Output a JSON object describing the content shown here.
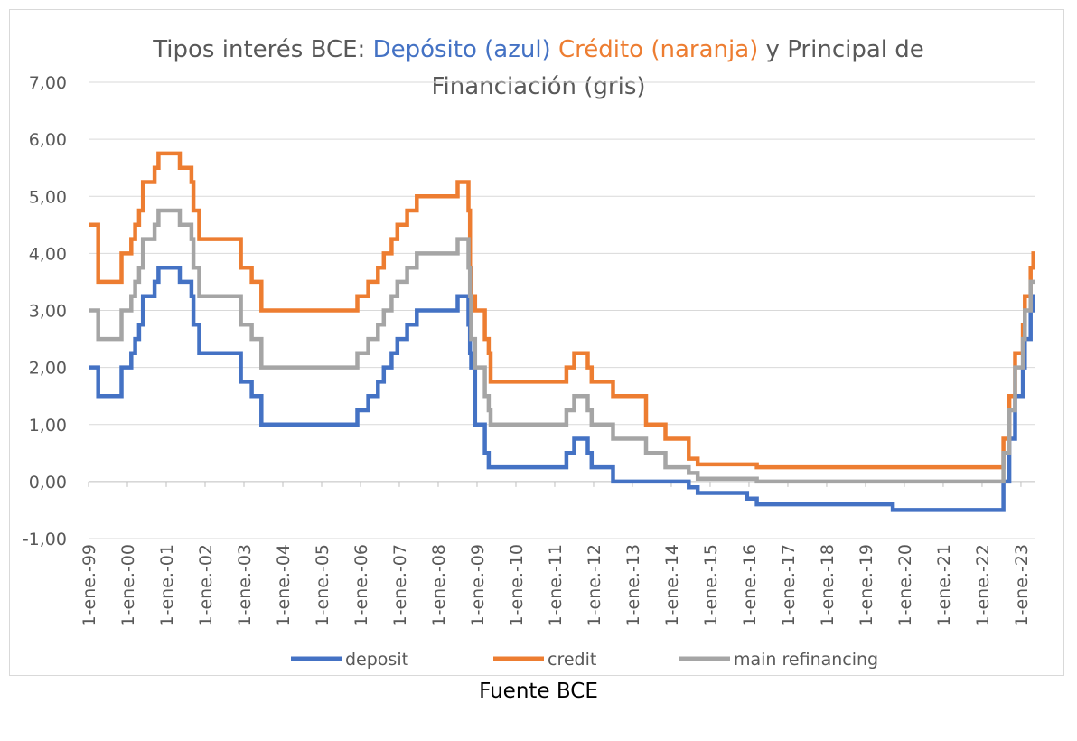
{
  "chart_data": {
    "type": "line",
    "title": {
      "line1": [
        {
          "text": "Tipos interés BCE: ",
          "color": "#595959"
        },
        {
          "text": "Depósito (azul)",
          "color": "#4472c4"
        },
        {
          "text": " ",
          "color": "#595959"
        },
        {
          "text": "Crédito (naranja)",
          "color": "#ed7d31"
        },
        {
          "text": " y Principal de",
          "color": "#595959"
        }
      ],
      "line2": [
        {
          "text": "Financiación (gris)",
          "color": "#595959"
        }
      ]
    },
    "y_ticks": [
      "7,00",
      "6,00",
      "5,00",
      "4,00",
      "3,00",
      "2,00",
      "1,00",
      "0,00",
      "-1,00"
    ],
    "ylim": [
      -1,
      7
    ],
    "xlim": [
      1999.0,
      2023.35
    ],
    "x_ticks": [
      {
        "year": 1999,
        "label": "1-ene.-99"
      },
      {
        "year": 2000,
        "label": "1-ene.-00"
      },
      {
        "year": 2001,
        "label": "1-ene.-01"
      },
      {
        "year": 2002,
        "label": "1-ene.-02"
      },
      {
        "year": 2003,
        "label": "1-ene.-03"
      },
      {
        "year": 2004,
        "label": "1-ene.-04"
      },
      {
        "year": 2005,
        "label": "1-ene.-05"
      },
      {
        "year": 2006,
        "label": "1-ene.-06"
      },
      {
        "year": 2007,
        "label": "1-ene.-07"
      },
      {
        "year": 2008,
        "label": "1-ene.-08"
      },
      {
        "year": 2009,
        "label": "1-ene.-09"
      },
      {
        "year": 2010,
        "label": "1-ene.-10"
      },
      {
        "year": 2011,
        "label": "1-ene.-11"
      },
      {
        "year": 2012,
        "label": "1-ene.-12"
      },
      {
        "year": 2013,
        "label": "1-ene.-13"
      },
      {
        "year": 2014,
        "label": "1-ene.-14"
      },
      {
        "year": 2015,
        "label": "1-ene.-15"
      },
      {
        "year": 2016,
        "label": "1-ene.-16"
      },
      {
        "year": 2017,
        "label": "1-ene.-17"
      },
      {
        "year": 2018,
        "label": "1-ene.-18"
      },
      {
        "year": 2019,
        "label": "1-ene.-19"
      },
      {
        "year": 2020,
        "label": "1-ene.-20"
      },
      {
        "year": 2021,
        "label": "1-ene.-21"
      },
      {
        "year": 2022,
        "label": "1-ene.-22"
      },
      {
        "year": 2023,
        "label": "1-ene.-23"
      }
    ],
    "grid": true,
    "legend_position": "bottom",
    "series": [
      {
        "name": "deposit",
        "color": "#4472c4",
        "steps": [
          [
            1999.0,
            2.0
          ],
          [
            1999.25,
            1.5
          ],
          [
            1999.85,
            2.0
          ],
          [
            2000.1,
            2.25
          ],
          [
            2000.2,
            2.5
          ],
          [
            2000.3,
            2.75
          ],
          [
            2000.4,
            3.25
          ],
          [
            2000.7,
            3.5
          ],
          [
            2000.8,
            3.75
          ],
          [
            2001.35,
            3.5
          ],
          [
            2001.65,
            3.25
          ],
          [
            2001.7,
            2.75
          ],
          [
            2001.85,
            2.25
          ],
          [
            2002.92,
            1.75
          ],
          [
            2003.2,
            1.5
          ],
          [
            2003.45,
            1.0
          ],
          [
            2005.92,
            1.25
          ],
          [
            2006.2,
            1.5
          ],
          [
            2006.45,
            1.75
          ],
          [
            2006.6,
            2.0
          ],
          [
            2006.8,
            2.25
          ],
          [
            2006.95,
            2.5
          ],
          [
            2007.2,
            2.75
          ],
          [
            2007.45,
            3.0
          ],
          [
            2008.5,
            3.25
          ],
          [
            2008.78,
            2.75
          ],
          [
            2008.82,
            2.25
          ],
          [
            2008.85,
            2.0
          ],
          [
            2008.95,
            1.0
          ],
          [
            2009.2,
            0.5
          ],
          [
            2009.3,
            0.25
          ],
          [
            2011.3,
            0.5
          ],
          [
            2011.5,
            0.75
          ],
          [
            2011.85,
            0.5
          ],
          [
            2011.95,
            0.25
          ],
          [
            2012.5,
            0.0
          ],
          [
            2014.45,
            -0.1
          ],
          [
            2014.68,
            -0.2
          ],
          [
            2015.95,
            -0.3
          ],
          [
            2016.2,
            -0.4
          ],
          [
            2019.7,
            -0.5
          ],
          [
            2022.55,
            0.0
          ],
          [
            2022.7,
            0.75
          ],
          [
            2022.85,
            1.5
          ],
          [
            2023.05,
            2.0
          ],
          [
            2023.1,
            2.5
          ],
          [
            2023.25,
            3.0
          ],
          [
            2023.32,
            3.25
          ]
        ]
      },
      {
        "name": "credit",
        "color": "#ed7d31",
        "steps": [
          [
            1999.0,
            4.5
          ],
          [
            1999.25,
            3.5
          ],
          [
            1999.85,
            4.0
          ],
          [
            2000.1,
            4.25
          ],
          [
            2000.2,
            4.5
          ],
          [
            2000.3,
            4.75
          ],
          [
            2000.4,
            5.25
          ],
          [
            2000.7,
            5.5
          ],
          [
            2000.8,
            5.75
          ],
          [
            2001.35,
            5.5
          ],
          [
            2001.65,
            5.25
          ],
          [
            2001.7,
            4.75
          ],
          [
            2001.85,
            4.25
          ],
          [
            2002.92,
            3.75
          ],
          [
            2003.2,
            3.5
          ],
          [
            2003.45,
            3.0
          ],
          [
            2005.92,
            3.25
          ],
          [
            2006.2,
            3.5
          ],
          [
            2006.45,
            3.75
          ],
          [
            2006.6,
            4.0
          ],
          [
            2006.8,
            4.25
          ],
          [
            2006.95,
            4.5
          ],
          [
            2007.2,
            4.75
          ],
          [
            2007.45,
            5.0
          ],
          [
            2008.5,
            5.25
          ],
          [
            2008.78,
            4.75
          ],
          [
            2008.82,
            3.75
          ],
          [
            2008.85,
            3.25
          ],
          [
            2008.95,
            3.0
          ],
          [
            2009.2,
            2.5
          ],
          [
            2009.3,
            2.25
          ],
          [
            2009.35,
            1.75
          ],
          [
            2011.3,
            2.0
          ],
          [
            2011.5,
            2.25
          ],
          [
            2011.85,
            2.0
          ],
          [
            2011.95,
            1.75
          ],
          [
            2012.5,
            1.5
          ],
          [
            2013.35,
            1.0
          ],
          [
            2013.85,
            0.75
          ],
          [
            2014.45,
            0.4
          ],
          [
            2014.68,
            0.3
          ],
          [
            2016.2,
            0.25
          ],
          [
            2022.55,
            0.75
          ],
          [
            2022.7,
            1.5
          ],
          [
            2022.85,
            2.25
          ],
          [
            2023.05,
            2.75
          ],
          [
            2023.1,
            3.25
          ],
          [
            2023.25,
            3.75
          ],
          [
            2023.32,
            4.0
          ]
        ]
      },
      {
        "name": "main refinancing",
        "color": "#a5a5a5",
        "steps": [
          [
            1999.0,
            3.0
          ],
          [
            1999.25,
            2.5
          ],
          [
            1999.85,
            3.0
          ],
          [
            2000.1,
            3.25
          ],
          [
            2000.2,
            3.5
          ],
          [
            2000.3,
            3.75
          ],
          [
            2000.4,
            4.25
          ],
          [
            2000.7,
            4.5
          ],
          [
            2000.8,
            4.75
          ],
          [
            2001.35,
            4.5
          ],
          [
            2001.65,
            4.25
          ],
          [
            2001.7,
            3.75
          ],
          [
            2001.85,
            3.25
          ],
          [
            2002.92,
            2.75
          ],
          [
            2003.2,
            2.5
          ],
          [
            2003.45,
            2.0
          ],
          [
            2005.92,
            2.25
          ],
          [
            2006.2,
            2.5
          ],
          [
            2006.45,
            2.75
          ],
          [
            2006.6,
            3.0
          ],
          [
            2006.8,
            3.25
          ],
          [
            2006.95,
            3.5
          ],
          [
            2007.2,
            3.75
          ],
          [
            2007.45,
            4.0
          ],
          [
            2008.5,
            4.25
          ],
          [
            2008.78,
            3.75
          ],
          [
            2008.82,
            3.25
          ],
          [
            2008.85,
            2.5
          ],
          [
            2008.95,
            2.0
          ],
          [
            2009.2,
            1.5
          ],
          [
            2009.3,
            1.25
          ],
          [
            2009.35,
            1.0
          ],
          [
            2011.3,
            1.25
          ],
          [
            2011.5,
            1.5
          ],
          [
            2011.85,
            1.25
          ],
          [
            2011.95,
            1.0
          ],
          [
            2012.5,
            0.75
          ],
          [
            2013.35,
            0.5
          ],
          [
            2013.85,
            0.25
          ],
          [
            2014.45,
            0.15
          ],
          [
            2014.68,
            0.05
          ],
          [
            2016.2,
            0.0
          ],
          [
            2022.55,
            0.5
          ],
          [
            2022.7,
            1.25
          ],
          [
            2022.85,
            2.0
          ],
          [
            2023.05,
            2.5
          ],
          [
            2023.1,
            3.0
          ],
          [
            2023.25,
            3.5
          ],
          [
            2023.32,
            3.5
          ]
        ]
      }
    ]
  },
  "caption": "Fuente BCE"
}
